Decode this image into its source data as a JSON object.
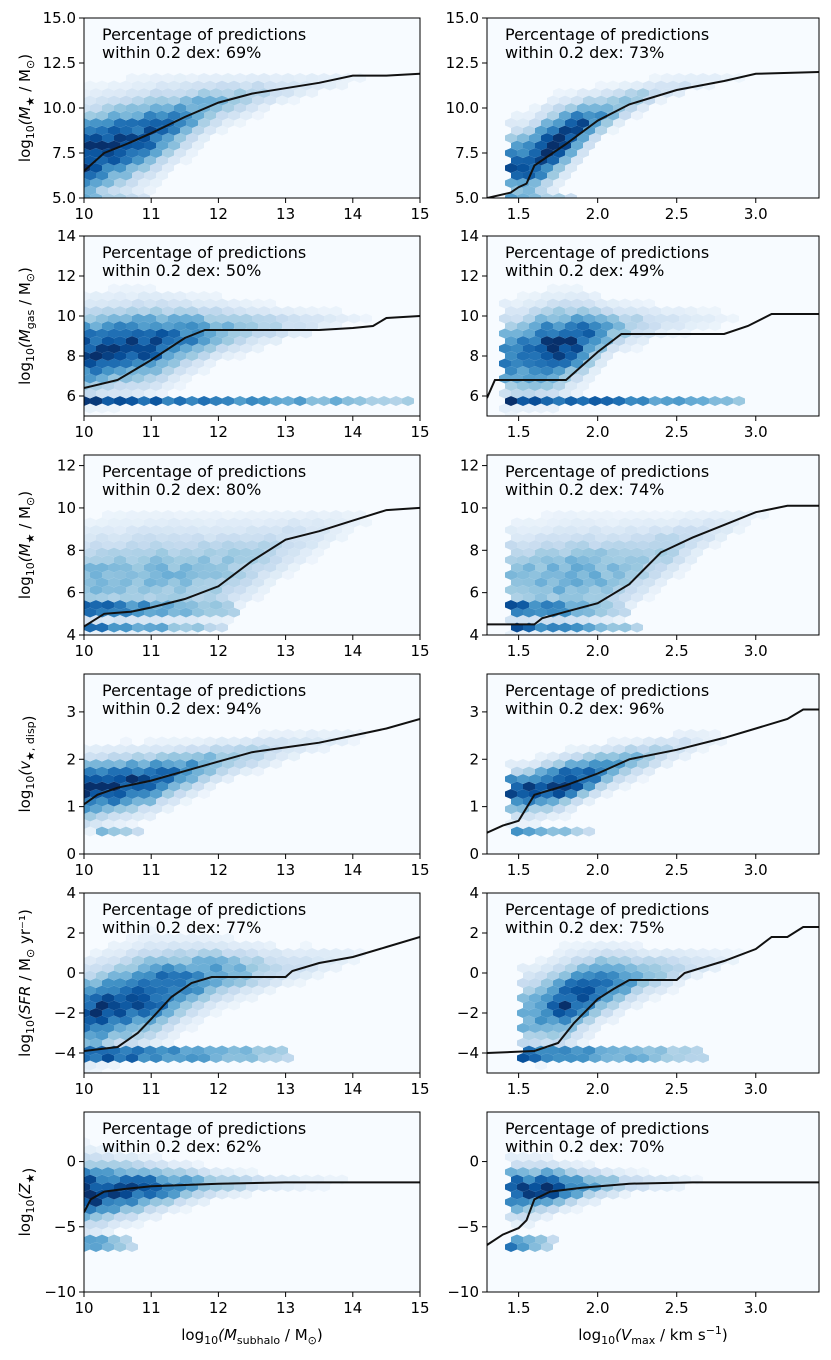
{
  "colors": {
    "panel_bg": "#f7fbff",
    "line": "#111111",
    "cmap": [
      "#f7fbff",
      "#deebf7",
      "#c6dbef",
      "#9ecae1",
      "#6baed6",
      "#4292c6",
      "#2171b5",
      "#08519c",
      "#08306b"
    ]
  },
  "columns": [
    {
      "xlabel_main": "log",
      "xlabel_sub": "10",
      "xlabel_paren": "(M",
      "xlabel_var_sub": "subhalo",
      "xlabel_unit": " / M",
      "xlabel_sun": "⊙",
      "xlabel_close": ")"
    },
    {
      "xlabel_main": "log",
      "xlabel_sub": "10",
      "xlabel_paren": "(V",
      "xlabel_var_sub": "max",
      "xlabel_unit": " / km s",
      "xlabel_sup": "−1",
      "xlabel_close": ")"
    }
  ],
  "rows": [
    {
      "ylabel": {
        "pre": "log",
        "sub": "10",
        "body": "(M",
        "bodysub": "★",
        "unit": " / M",
        "usub": "⊙",
        "close": ")"
      },
      "ylim": [
        5,
        15
      ],
      "yticks": [
        "5.0",
        "7.5",
        "10.0",
        "12.5",
        "15.0"
      ],
      "ytick_values": [
        5,
        7.5,
        10,
        12.5,
        15
      ]
    },
    {
      "ylabel": {
        "pre": "log",
        "sub": "10",
        "body": "(M",
        "bodysub": "gas",
        "unit": " / M",
        "usub": "⊙",
        "close": ")"
      },
      "ylim": [
        5,
        14
      ],
      "yticks": [
        "6",
        "8",
        "10",
        "12",
        "14"
      ],
      "ytick_values": [
        6,
        8,
        10,
        12,
        14
      ]
    },
    {
      "ylabel": {
        "pre": "log",
        "sub": "10",
        "body": "(M",
        "bodysub": "★",
        "unit": " / M",
        "usub": "⊙",
        "close": ")"
      },
      "ylim": [
        4,
        12.5
      ],
      "yticks": [
        "4",
        "6",
        "8",
        "10",
        "12"
      ],
      "ytick_values": [
        4,
        6,
        8,
        10,
        12
      ]
    },
    {
      "ylabel": {
        "pre": "log",
        "sub": "10",
        "body": "(v",
        "bodysub": "★, disp",
        "unit": "",
        "usub": "",
        "close": ")"
      },
      "ylim": [
        0,
        3.8
      ],
      "yticks": [
        "0",
        "1",
        "2",
        "3"
      ],
      "ytick_values": [
        0,
        1,
        2,
        3
      ]
    },
    {
      "ylabel": {
        "pre": "log",
        "sub": "10",
        "body": "(SFR",
        "bodysub": "",
        "unit": " / M",
        "usub": "⊙",
        "close": " yr⁻¹)"
      },
      "ylim": [
        -5,
        4
      ],
      "yticks": [
        "−4",
        "−2",
        "0",
        "2",
        "4"
      ],
      "ytick_values": [
        -4,
        -2,
        0,
        2,
        4
      ]
    },
    {
      "ylabel": {
        "pre": "log",
        "sub": "10",
        "body": "(Z",
        "bodysub": "★",
        "unit": "",
        "usub": "",
        "close": ")"
      },
      "ylim": [
        -10,
        3.8
      ],
      "yticks": [
        "−10",
        "−5",
        "0"
      ],
      "ytick_values": [
        -10,
        -5,
        0
      ]
    }
  ],
  "chart_data": [
    {
      "type": "scatter",
      "panel": "row1-left",
      "x_quantity": "log10(M_subhalo / M_sun)",
      "xlim": [
        10,
        15
      ],
      "xticks": [
        10,
        11,
        12,
        13,
        14,
        15
      ],
      "y_quantity": "log10(M_star / M_sun)",
      "ylim": [
        5,
        15
      ],
      "annotation_line1": "Percentage of predictions",
      "annotation_line2": "within 0.2 dex: 69%",
      "median_line": {
        "x": [
          10.0,
          10.3,
          10.7,
          11.0,
          11.5,
          12.0,
          12.5,
          13.0,
          13.5,
          14.0,
          14.5,
          15.0
        ],
        "y": [
          6.5,
          7.5,
          8.1,
          8.6,
          9.5,
          10.3,
          10.8,
          11.1,
          11.4,
          11.8,
          11.8,
          11.9
        ]
      },
      "density_ridge": {
        "x": [
          10.0,
          11.0,
          12.0,
          13.0,
          14.0
        ],
        "y": [
          7.3,
          8.6,
          10.3,
          11.1,
          11.6
        ],
        "spread": [
          1.6,
          1.4,
          0.8,
          0.5,
          0.3
        ],
        "weight": [
          1.0,
          0.8,
          0.45,
          0.2,
          0.08
        ]
      }
    },
    {
      "type": "scatter",
      "panel": "row1-right",
      "x_quantity": "log10(V_max / km s^-1)",
      "xlim": [
        1.3,
        3.4
      ],
      "xticks": [
        1.5,
        2.0,
        2.5,
        3.0
      ],
      "y_quantity": "log10(M_star / M_sun)",
      "ylim": [
        5,
        15
      ],
      "annotation_line1": "Percentage of predictions",
      "annotation_line2": "within 0.2 dex: 73%",
      "median_line": {
        "x": [
          1.3,
          1.45,
          1.5,
          1.55,
          1.6,
          1.8,
          2.0,
          2.2,
          2.5,
          2.8,
          3.0,
          3.4
        ],
        "y": [
          5.0,
          5.3,
          5.6,
          5.8,
          6.8,
          8.0,
          9.3,
          10.2,
          11.0,
          11.5,
          11.9,
          12.0
        ]
      },
      "density_ridge": {
        "x": [
          1.55,
          1.7,
          1.9,
          2.1,
          2.4,
          2.8
        ],
        "y": [
          6.8,
          7.8,
          9.0,
          10.0,
          11.0,
          11.7
        ],
        "spread": [
          1.3,
          1.2,
          0.9,
          0.6,
          0.4,
          0.2
        ],
        "weight": [
          0.8,
          1.0,
          0.85,
          0.5,
          0.25,
          0.08
        ]
      }
    },
    {
      "type": "scatter",
      "panel": "row2-left",
      "x_quantity": "log10(M_subhalo / M_sun)",
      "xlim": [
        10,
        15
      ],
      "xticks": [
        10,
        11,
        12,
        13,
        14,
        15
      ],
      "y_quantity": "log10(M_gas / M_sun)",
      "ylim": [
        5,
        14
      ],
      "annotation_line1": "Percentage of predictions",
      "annotation_line2": "within 0.2 dex: 50%",
      "median_line": {
        "x": [
          10.0,
          10.5,
          11.0,
          11.5,
          11.8,
          12.0,
          13.0,
          13.5,
          14.0,
          14.3,
          14.5,
          15.0
        ],
        "y": [
          6.4,
          6.8,
          7.8,
          8.9,
          9.3,
          9.3,
          9.3,
          9.3,
          9.4,
          9.5,
          9.9,
          10.0
        ]
      },
      "density_ridge": {
        "x": [
          10.0,
          11.0,
          12.0,
          13.0,
          14.0
        ],
        "y": [
          8.2,
          8.6,
          9.3,
          9.6,
          9.9
        ],
        "spread": [
          1.3,
          1.2,
          0.8,
          0.5,
          0.3
        ],
        "weight": [
          0.9,
          0.9,
          0.5,
          0.25,
          0.08
        ]
      }
    },
    {
      "type": "scatter",
      "panel": "row2-right",
      "x_quantity": "log10(V_max / km s^-1)",
      "xlim": [
        1.3,
        3.4
      ],
      "xticks": [
        1.5,
        2.0,
        2.5,
        3.0
      ],
      "y_quantity": "log10(M_gas / M_sun)",
      "ylim": [
        5,
        14
      ],
      "annotation_line1": "Percentage of predictions",
      "annotation_line2": "within 0.2 dex: 49%",
      "median_line": {
        "x": [
          1.3,
          1.35,
          1.4,
          1.6,
          1.8,
          2.0,
          2.15,
          2.5,
          2.8,
          2.95,
          3.1,
          3.4
        ],
        "y": [
          5.9,
          6.8,
          6.8,
          6.8,
          6.8,
          8.2,
          9.1,
          9.1,
          9.1,
          9.5,
          10.1,
          10.1
        ]
      },
      "density_ridge": {
        "x": [
          1.5,
          1.7,
          1.9,
          2.1,
          2.4,
          2.8
        ],
        "y": [
          8.0,
          8.3,
          8.8,
          9.4,
          9.7,
          9.9
        ],
        "spread": [
          1.3,
          1.3,
          1.1,
          0.7,
          0.5,
          0.3
        ],
        "weight": [
          0.7,
          1.0,
          0.85,
          0.45,
          0.2,
          0.08
        ]
      }
    },
    {
      "type": "scatter",
      "panel": "row3-left",
      "x_quantity": "log10(M_subhalo / M_sun)",
      "xlim": [
        10,
        15
      ],
      "xticks": [
        10,
        11,
        12,
        13,
        14,
        15
      ],
      "y_quantity": "log10(M_star / M_sun)",
      "ylim": [
        4,
        12.5
      ],
      "annotation_line1": "Percentage of predictions",
      "annotation_line2": "within 0.2 dex: 80%",
      "median_line": {
        "x": [
          10.0,
          10.1,
          10.3,
          10.7,
          11.0,
          11.5,
          12.0,
          12.5,
          13.0,
          13.5,
          14.0,
          14.5,
          15.0
        ],
        "y": [
          4.4,
          4.6,
          5.0,
          5.1,
          5.3,
          5.7,
          6.3,
          7.5,
          8.5,
          8.9,
          9.4,
          9.9,
          10.0
        ]
      },
      "density_ridge": {
        "x": [
          10.0,
          11.0,
          12.0,
          13.0,
          14.0
        ],
        "y": [
          6.6,
          6.8,
          7.0,
          8.3,
          9.4
        ],
        "spread": [
          1.4,
          1.5,
          1.4,
          0.9,
          0.5
        ],
        "weight": [
          0.45,
          0.45,
          0.4,
          0.25,
          0.08
        ]
      }
    },
    {
      "type": "scatter",
      "panel": "row3-right",
      "x_quantity": "log10(V_max / km s^-1)",
      "xlim": [
        1.3,
        3.4
      ],
      "xticks": [
        1.5,
        2.0,
        2.5,
        3.0
      ],
      "y_quantity": "log10(M_star / M_sun)",
      "ylim": [
        4,
        12.5
      ],
      "annotation_line1": "Percentage of predictions",
      "annotation_line2": "within 0.2 dex: 74%",
      "median_line": {
        "x": [
          1.3,
          1.6,
          1.65,
          1.8,
          2.0,
          2.2,
          2.4,
          2.6,
          2.8,
          3.0,
          3.2,
          3.4
        ],
        "y": [
          4.5,
          4.5,
          4.8,
          5.1,
          5.5,
          6.4,
          7.9,
          8.6,
          9.2,
          9.8,
          10.1,
          10.1
        ]
      },
      "density_ridge": {
        "x": [
          1.55,
          1.8,
          2.1,
          2.4,
          2.7,
          3.0
        ],
        "y": [
          6.6,
          6.7,
          7.0,
          7.9,
          8.9,
          9.7
        ],
        "spread": [
          1.4,
          1.5,
          1.3,
          0.9,
          0.6,
          0.3
        ],
        "weight": [
          0.45,
          0.5,
          0.45,
          0.35,
          0.2,
          0.06
        ]
      }
    },
    {
      "type": "scatter",
      "panel": "row4-left",
      "x_quantity": "log10(M_subhalo / M_sun)",
      "xlim": [
        10,
        15
      ],
      "xticks": [
        10,
        11,
        12,
        13,
        14,
        15
      ],
      "y_quantity": "log10(v_star,disp)",
      "ylim": [
        0,
        3.8
      ],
      "annotation_line1": "Percentage of predictions",
      "annotation_line2": "within 0.2 dex: 94%",
      "median_line": {
        "x": [
          10.0,
          10.2,
          10.5,
          11.0,
          11.5,
          12.0,
          12.5,
          13.0,
          13.5,
          14.0,
          14.5,
          15.0
        ],
        "y": [
          1.05,
          1.25,
          1.4,
          1.55,
          1.75,
          1.95,
          2.15,
          2.25,
          2.35,
          2.5,
          2.65,
          2.85
        ]
      },
      "density_ridge": {
        "x": [
          10.0,
          11.0,
          12.0,
          13.0,
          14.0
        ],
        "y": [
          1.35,
          1.55,
          1.95,
          2.25,
          2.5
        ],
        "spread": [
          0.4,
          0.35,
          0.25,
          0.2,
          0.15
        ],
        "weight": [
          1.0,
          0.9,
          0.45,
          0.2,
          0.08
        ]
      }
    },
    {
      "type": "scatter",
      "panel": "row4-right",
      "x_quantity": "log10(V_max / km s^-1)",
      "xlim": [
        1.3,
        3.4
      ],
      "xticks": [
        1.5,
        2.0,
        2.5,
        3.0
      ],
      "y_quantity": "log10(v_star,disp)",
      "ylim": [
        0,
        3.8
      ],
      "annotation_line1": "Percentage of predictions",
      "annotation_line2": "within 0.2 dex: 96%",
      "median_line": {
        "x": [
          1.3,
          1.4,
          1.5,
          1.6,
          1.8,
          2.0,
          2.2,
          2.5,
          2.8,
          3.0,
          3.2,
          3.3,
          3.4
        ],
        "y": [
          0.45,
          0.6,
          0.7,
          1.25,
          1.45,
          1.7,
          2.0,
          2.2,
          2.45,
          2.65,
          2.85,
          3.05,
          3.05
        ]
      },
      "density_ridge": {
        "x": [
          1.55,
          1.8,
          2.1,
          2.4,
          2.7
        ],
        "y": [
          1.3,
          1.5,
          1.85,
          2.15,
          2.45
        ],
        "spread": [
          0.3,
          0.3,
          0.25,
          0.2,
          0.15
        ],
        "weight": [
          0.9,
          1.0,
          0.6,
          0.3,
          0.1
        ]
      }
    },
    {
      "type": "scatter",
      "panel": "row5-left",
      "x_quantity": "log10(M_subhalo / M_sun)",
      "xlim": [
        10,
        15
      ],
      "xticks": [
        10,
        11,
        12,
        13,
        14,
        15
      ],
      "y_quantity": "log10(SFR / M_sun yr^-1)",
      "ylim": [
        -5,
        4
      ],
      "annotation_line1": "Percentage of predictions",
      "annotation_line2": "within 0.2 dex: 77%",
      "median_line": {
        "x": [
          10.0,
          10.5,
          10.8,
          11.0,
          11.3,
          11.6,
          11.9,
          12.0,
          13.0,
          13.1,
          13.5,
          14.0,
          14.5,
          15.0
        ],
        "y": [
          -3.9,
          -3.7,
          -3.0,
          -2.3,
          -1.2,
          -0.5,
          -0.2,
          -0.2,
          -0.2,
          0.1,
          0.5,
          0.8,
          1.3,
          1.8
        ]
      },
      "density_ridge": {
        "x": [
          10.0,
          11.0,
          12.0,
          13.0,
          14.0
        ],
        "y": [
          -2.1,
          -1.0,
          0.0,
          0.3,
          0.9
        ],
        "spread": [
          1.3,
          1.3,
          0.9,
          0.6,
          0.4
        ],
        "weight": [
          0.9,
          0.9,
          0.55,
          0.25,
          0.08
        ]
      }
    },
    {
      "type": "scatter",
      "panel": "row5-right",
      "x_quantity": "log10(V_max / km s^-1)",
      "xlim": [
        1.3,
        3.4
      ],
      "xticks": [
        1.5,
        2.0,
        2.5,
        3.0
      ],
      "y_quantity": "log10(SFR / M_sun yr^-1)",
      "ylim": [
        -5,
        4
      ],
      "annotation_line1": "Percentage of predictions",
      "annotation_line2": "within 0.2 dex: 75%",
      "median_line": {
        "x": [
          1.3,
          1.6,
          1.75,
          1.85,
          2.0,
          2.1,
          2.2,
          2.5,
          2.55,
          2.8,
          3.0,
          3.1,
          3.2,
          3.3,
          3.4
        ],
        "y": [
          -4.0,
          -3.9,
          -3.5,
          -2.5,
          -1.3,
          -0.8,
          -0.35,
          -0.35,
          0.0,
          0.6,
          1.2,
          1.8,
          1.8,
          2.3,
          2.3
        ]
      },
      "density_ridge": {
        "x": [
          1.6,
          1.8,
          2.0,
          2.3,
          2.6,
          2.9
        ],
        "y": [
          -2.0,
          -1.5,
          -0.6,
          -0.1,
          0.4,
          0.9
        ],
        "spread": [
          1.2,
          1.2,
          1.0,
          0.7,
          0.5,
          0.3
        ],
        "weight": [
          0.55,
          0.9,
          0.8,
          0.45,
          0.2,
          0.06
        ]
      }
    },
    {
      "type": "scatter",
      "panel": "row6-left",
      "x_quantity": "log10(M_subhalo / M_sun)",
      "xlim": [
        10,
        15
      ],
      "xticks": [
        10,
        11,
        12,
        13,
        14,
        15
      ],
      "y_quantity": "log10(Z_star)",
      "ylim": [
        -10,
        3.8
      ],
      "annotation_line1": "Percentage of predictions",
      "annotation_line2": "within 0.2 dex: 62%",
      "median_line": {
        "x": [
          10.0,
          10.1,
          10.3,
          10.6,
          11.0,
          11.5,
          12.0,
          13.0,
          14.0,
          15.0
        ],
        "y": [
          -3.9,
          -2.9,
          -2.3,
          -2.1,
          -1.9,
          -1.8,
          -1.7,
          -1.6,
          -1.6,
          -1.6
        ]
      },
      "density_ridge": {
        "x": [
          10.0,
          11.0,
          12.0,
          13.0,
          14.0
        ],
        "y": [
          -2.4,
          -2.0,
          -1.7,
          -1.6,
          -1.6
        ],
        "spread": [
          1.6,
          1.1,
          0.6,
          0.4,
          0.3
        ],
        "weight": [
          1.0,
          0.8,
          0.4,
          0.15,
          0.05
        ]
      }
    },
    {
      "type": "scatter",
      "panel": "row6-right",
      "x_quantity": "log10(V_max / km s^-1)",
      "xlim": [
        1.3,
        3.4
      ],
      "xticks": [
        1.5,
        2.0,
        2.5,
        3.0
      ],
      "y_quantity": "log10(Z_star)",
      "ylim": [
        -10,
        3.8
      ],
      "annotation_line1": "Percentage of predictions",
      "annotation_line2": "within 0.2 dex: 70%",
      "median_line": {
        "x": [
          1.3,
          1.4,
          1.5,
          1.55,
          1.6,
          1.7,
          1.9,
          2.2,
          2.6,
          3.0,
          3.4
        ],
        "y": [
          -6.4,
          -5.6,
          -5.1,
          -4.5,
          -2.9,
          -2.3,
          -2.0,
          -1.7,
          -1.6,
          -1.6,
          -1.6
        ]
      },
      "density_ridge": {
        "x": [
          1.55,
          1.7,
          1.9,
          2.2,
          2.6
        ],
        "y": [
          -2.2,
          -2.0,
          -1.8,
          -1.6,
          -1.6
        ],
        "spread": [
          1.2,
          1.0,
          0.8,
          0.5,
          0.3
        ],
        "weight": [
          0.9,
          1.0,
          0.6,
          0.3,
          0.08
        ]
      }
    }
  ]
}
